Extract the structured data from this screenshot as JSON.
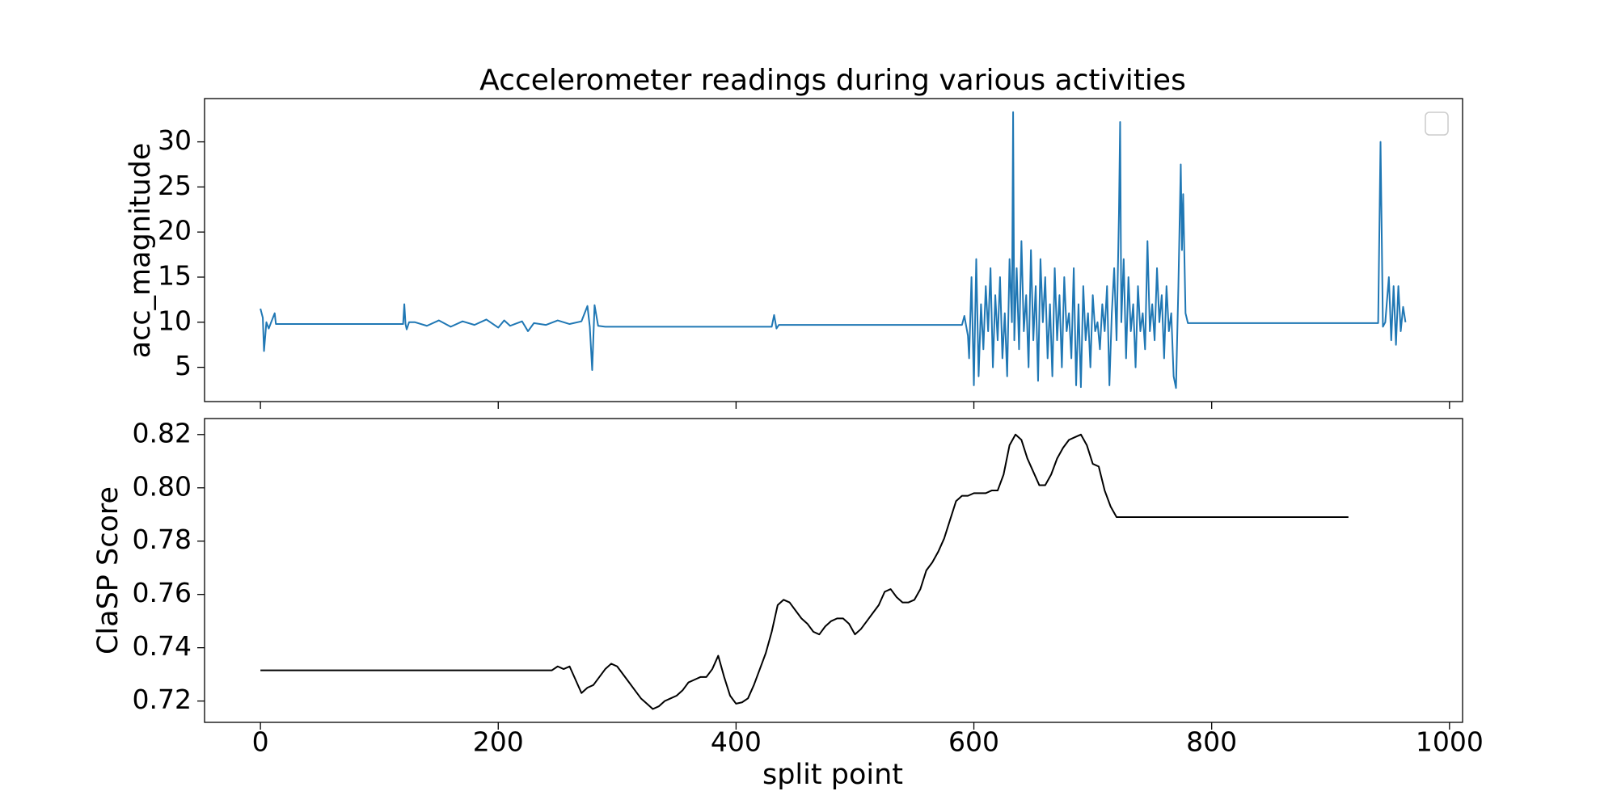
{
  "chart_data": [
    {
      "type": "line",
      "title": "Accelerometer readings during various activities",
      "ylabel": "acc_magnitude",
      "xlim": [
        -47,
        1011
      ],
      "ylim": [
        1.2,
        34.8
      ],
      "yticks": [
        5,
        10,
        15,
        20,
        25,
        30
      ],
      "legend": "upper right",
      "series": [
        {
          "color": "#1f77b4",
          "x": [
            0,
            2,
            3,
            5,
            7,
            9,
            12,
            13,
            120,
            121,
            122,
            123,
            125,
            130,
            140,
            150,
            160,
            170,
            180,
            190,
            200,
            205,
            210,
            220,
            225,
            230,
            240,
            250,
            260,
            270,
            275,
            277,
            279,
            281,
            284,
            290,
            430,
            432,
            434,
            436,
            590,
            592,
            595,
            596,
            598,
            600,
            602,
            604,
            606,
            608,
            610,
            612,
            614,
            616,
            618,
            620,
            622,
            624,
            626,
            628,
            630,
            632,
            633,
            634,
            636,
            638,
            640,
            642,
            644,
            646,
            648,
            650,
            652,
            654,
            656,
            658,
            660,
            662,
            664,
            666,
            668,
            670,
            672,
            674,
            676,
            678,
            680,
            682,
            684,
            686,
            688,
            690,
            692,
            694,
            696,
            698,
            700,
            702,
            704,
            706,
            708,
            710,
            712,
            714,
            716,
            718,
            720,
            722,
            723,
            724,
            726,
            728,
            730,
            732,
            734,
            736,
            738,
            740,
            742,
            744,
            746,
            748,
            750,
            752,
            754,
            756,
            758,
            760,
            762,
            764,
            766,
            768,
            770,
            772,
            774,
            775,
            776,
            778,
            780,
            940,
            942,
            944,
            946,
            949,
            951,
            953,
            955,
            957,
            959,
            961,
            963
          ],
          "values": [
            11.5,
            10.5,
            6.8,
            10,
            9.3,
            10,
            11,
            9.8,
            9.8,
            12,
            9.8,
            9.2,
            10,
            10,
            9.6,
            10.2,
            9.5,
            10.1,
            9.7,
            10.3,
            9.4,
            10.2,
            9.6,
            10.1,
            9,
            9.9,
            9.7,
            10.2,
            9.8,
            10.1,
            11.8,
            9.5,
            4.7,
            11.9,
            9.6,
            9.5,
            9.5,
            10.8,
            9.3,
            9.7,
            9.7,
            10.7,
            8.5,
            6,
            15,
            3,
            17,
            4,
            12,
            7,
            14,
            9,
            16,
            5,
            13,
            8,
            15,
            6,
            11,
            4,
            17,
            10,
            33.3,
            8,
            16,
            7,
            19,
            9,
            13,
            5,
            18,
            8,
            14,
            3.5,
            17,
            10,
            15,
            6,
            12,
            4,
            16,
            8,
            13,
            5,
            15,
            9,
            11,
            6,
            16,
            3,
            12,
            2.8,
            14,
            8,
            11,
            5,
            13,
            9,
            10,
            7,
            12,
            9,
            14,
            3,
            11,
            16,
            8,
            22,
            32.2,
            10,
            17,
            6,
            15,
            9,
            12,
            5,
            14,
            9,
            11,
            7,
            19,
            9,
            12,
            8,
            16,
            10,
            13,
            6,
            14,
            9,
            11,
            4,
            2.7,
            14,
            27.5,
            18,
            24.2,
            11,
            9.9,
            9.9,
            30,
            9.5,
            10,
            15,
            8,
            14,
            7.5,
            14,
            9,
            11.7,
            10
          ]
        }
      ]
    },
    {
      "type": "line",
      "ylabel": "ClaSP Score",
      "xlabel": "split point",
      "xlim": [
        -47,
        1011
      ],
      "xticks": [
        0,
        200,
        400,
        600,
        800,
        1000
      ],
      "ylim": [
        0.712,
        0.826
      ],
      "yticks": [
        0.72,
        0.74,
        0.76,
        0.78,
        {
          "value": 0.8,
          "label": "0.80"
        },
        0.82
      ],
      "series": [
        {
          "color": "#000000",
          "x": [
            0,
            245,
            250,
            255,
            260,
            265,
            270,
            275,
            280,
            285,
            290,
            295,
            300,
            305,
            310,
            315,
            320,
            325,
            330,
            335,
            340,
            345,
            350,
            355,
            360,
            365,
            370,
            375,
            380,
            385,
            390,
            395,
            400,
            405,
            410,
            415,
            420,
            425,
            430,
            435,
            440,
            445,
            450,
            455,
            460,
            465,
            470,
            475,
            480,
            485,
            490,
            495,
            500,
            505,
            510,
            515,
            520,
            525,
            530,
            535,
            540,
            545,
            550,
            555,
            560,
            565,
            570,
            575,
            580,
            585,
            590,
            595,
            600,
            605,
            610,
            615,
            620,
            625,
            630,
            635,
            640,
            645,
            650,
            655,
            660,
            665,
            670,
            675,
            680,
            685,
            690,
            695,
            700,
            705,
            710,
            715,
            720,
            915
          ],
          "values": [
            0.7315,
            0.7315,
            0.733,
            0.732,
            0.733,
            0.728,
            0.723,
            0.725,
            0.726,
            0.729,
            0.732,
            0.734,
            0.733,
            0.73,
            0.727,
            0.724,
            0.721,
            0.719,
            0.717,
            0.718,
            0.72,
            0.721,
            0.722,
            0.724,
            0.727,
            0.728,
            0.729,
            0.729,
            0.732,
            0.737,
            0.729,
            0.722,
            0.719,
            0.7195,
            0.721,
            0.726,
            0.732,
            0.738,
            0.746,
            0.756,
            0.758,
            0.757,
            0.754,
            0.751,
            0.749,
            0.746,
            0.745,
            0.748,
            0.75,
            0.751,
            0.751,
            0.749,
            0.745,
            0.747,
            0.75,
            0.753,
            0.756,
            0.761,
            0.762,
            0.759,
            0.757,
            0.757,
            0.758,
            0.762,
            0.769,
            0.772,
            0.776,
            0.781,
            0.788,
            0.795,
            0.797,
            0.797,
            0.798,
            0.798,
            0.798,
            0.799,
            0.799,
            0.805,
            0.816,
            0.82,
            0.818,
            0.811,
            0.806,
            0.801,
            0.801,
            0.805,
            0.811,
            0.815,
            0.818,
            0.819,
            0.82,
            0.816,
            0.809,
            0.808,
            0.799,
            0.793,
            0.789,
            0.789
          ]
        }
      ]
    }
  ]
}
